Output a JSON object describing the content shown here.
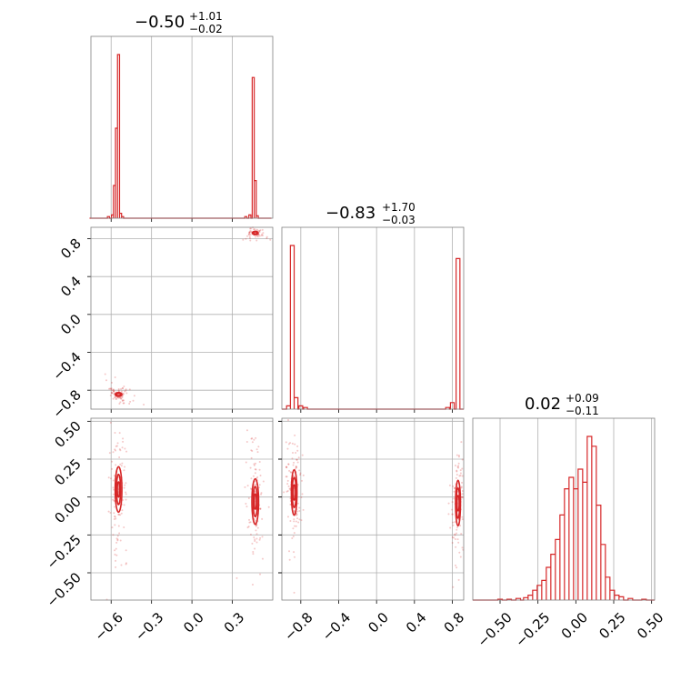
{
  "chart_data": {
    "type": "corner",
    "color": "#d62728",
    "titles": [
      {
        "median": "−0.50",
        "plus": "+1.01",
        "minus": "−0.02"
      },
      {
        "median": "−0.83",
        "plus": "+1.70",
        "minus": "−0.03"
      },
      {
        "median": "0.02",
        "plus": "+0.09",
        "minus": "−0.11"
      }
    ],
    "param_ranges": [
      [
        -0.75,
        0.6
      ],
      [
        -1.0,
        0.92
      ],
      [
        -0.68,
        0.52
      ]
    ],
    "ticks": {
      "p0": {
        "values": [
          -0.6,
          -0.3,
          0.0,
          0.3
        ],
        "labels": [
          "−0.6",
          "−0.3",
          "0.0",
          "0.3"
        ]
      },
      "p1": {
        "values": [
          -0.8,
          -0.4,
          0.0,
          0.4,
          0.8
        ],
        "labels": [
          "−0.8",
          "−0.4",
          "0.0",
          "0.4",
          "0.8"
        ]
      },
      "p2": {
        "values": [
          -0.5,
          -0.25,
          0.0,
          0.25,
          0.5
        ],
        "labels": [
          "−0.50",
          "−0.25",
          "0.00",
          "0.25",
          "0.50"
        ]
      }
    },
    "histograms": [
      {
        "param": 0,
        "bin_edges": [
          -0.76,
          0.59
        ],
        "bins": [
          {
            "x": -0.62,
            "h": 0.01
          },
          {
            "x": -0.59,
            "h": 0.02
          },
          {
            "x": -0.575,
            "h": 0.2
          },
          {
            "x": -0.56,
            "h": 0.55
          },
          {
            "x": -0.545,
            "h": 1.0
          },
          {
            "x": -0.53,
            "h": 0.03
          },
          {
            "x": -0.515,
            "h": 0.01
          },
          {
            "x": 0.4,
            "h": 0.01
          },
          {
            "x": 0.43,
            "h": 0.02
          },
          {
            "x": 0.455,
            "h": 0.86
          },
          {
            "x": 0.47,
            "h": 0.23
          },
          {
            "x": 0.485,
            "h": 0.015
          }
        ]
      },
      {
        "param": 1,
        "bin_edges": [
          -1.0,
          0.92
        ],
        "bins": [
          {
            "x": -0.93,
            "h": 0.02
          },
          {
            "x": -0.89,
            "h": 1.0
          },
          {
            "x": -0.85,
            "h": 0.07
          },
          {
            "x": -0.8,
            "h": 0.02
          },
          {
            "x": -0.75,
            "h": 0.01
          },
          {
            "x": 0.75,
            "h": 0.01
          },
          {
            "x": 0.8,
            "h": 0.04
          },
          {
            "x": 0.86,
            "h": 0.92
          }
        ]
      },
      {
        "param": 2,
        "bin_edges": [
          -0.68,
          0.52
        ],
        "bins": [
          {
            "x": -0.5,
            "h": 0.005
          },
          {
            "x": -0.44,
            "h": 0.005
          },
          {
            "x": -0.38,
            "h": 0.01
          },
          {
            "x": -0.33,
            "h": 0.015
          },
          {
            "x": -0.3,
            "h": 0.03
          },
          {
            "x": -0.27,
            "h": 0.06
          },
          {
            "x": -0.24,
            "h": 0.09
          },
          {
            "x": -0.21,
            "h": 0.12
          },
          {
            "x": -0.18,
            "h": 0.2
          },
          {
            "x": -0.15,
            "h": 0.28
          },
          {
            "x": -0.12,
            "h": 0.37
          },
          {
            "x": -0.09,
            "h": 0.52
          },
          {
            "x": -0.06,
            "h": 0.68
          },
          {
            "x": -0.03,
            "h": 0.75
          },
          {
            "x": 0.0,
            "h": 0.68
          },
          {
            "x": 0.03,
            "h": 0.8
          },
          {
            "x": 0.06,
            "h": 0.72
          },
          {
            "x": 0.09,
            "h": 1.0
          },
          {
            "x": 0.12,
            "h": 0.94
          },
          {
            "x": 0.15,
            "h": 0.58
          },
          {
            "x": 0.18,
            "h": 0.34
          },
          {
            "x": 0.21,
            "h": 0.14
          },
          {
            "x": 0.24,
            "h": 0.06
          },
          {
            "x": 0.27,
            "h": 0.03
          },
          {
            "x": 0.3,
            "h": 0.02
          },
          {
            "x": 0.36,
            "h": 0.01
          },
          {
            "x": 0.45,
            "h": 0.005
          }
        ]
      }
    ],
    "scatter_2d": [
      {
        "x_param": 0,
        "y_param": 1,
        "clusters": [
          {
            "cx": -0.545,
            "cy": -0.84,
            "rx": 0.03,
            "ry": 0.03,
            "n": 80,
            "tilt": -0.7
          },
          {
            "cx": 0.47,
            "cy": 0.86,
            "rx": 0.03,
            "ry": 0.03,
            "n": 60,
            "tilt": 0.0
          }
        ]
      },
      {
        "x_param": 0,
        "y_param": 2,
        "clusters": [
          {
            "cx": -0.545,
            "cy": 0.05,
            "rx": 0.02,
            "ry": 0.13,
            "n": 120,
            "tilt": 0.0
          },
          {
            "cx": 0.47,
            "cy": -0.03,
            "rx": 0.02,
            "ry": 0.13,
            "n": 110,
            "tilt": 0.0
          }
        ]
      },
      {
        "x_param": 1,
        "y_param": 2,
        "clusters": [
          {
            "cx": -0.87,
            "cy": 0.03,
            "rx": 0.03,
            "ry": 0.13,
            "n": 120,
            "tilt": 0.0
          },
          {
            "cx": 0.86,
            "cy": -0.05,
            "rx": 0.025,
            "ry": 0.13,
            "n": 110,
            "tilt": 0.0
          }
        ]
      }
    ],
    "contours_2d": [
      {
        "x_param": 0,
        "y_param": 1,
        "cx": -0.545,
        "cy": -0.845,
        "rx": [
          0.015,
          0.025
        ],
        "ry": [
          0.012,
          0.02
        ]
      },
      {
        "x_param": 0,
        "y_param": 1,
        "cx": 0.47,
        "cy": 0.86,
        "rx": [
          0.012,
          0.022
        ],
        "ry": [
          0.012,
          0.018
        ]
      },
      {
        "x_param": 0,
        "y_param": 2,
        "cx": -0.545,
        "cy": 0.05,
        "rx": [
          0.008,
          0.015,
          0.025
        ],
        "ry": [
          0.05,
          0.1,
          0.15
        ]
      },
      {
        "x_param": 0,
        "y_param": 2,
        "cx": 0.47,
        "cy": -0.03,
        "rx": [
          0.008,
          0.015,
          0.025
        ],
        "ry": [
          0.05,
          0.1,
          0.15
        ]
      },
      {
        "x_param": 1,
        "y_param": 2,
        "cx": -0.87,
        "cy": 0.03,
        "rx": [
          0.01,
          0.02,
          0.03
        ],
        "ry": [
          0.05,
          0.1,
          0.15
        ]
      },
      {
        "x_param": 1,
        "y_param": 2,
        "cx": 0.86,
        "cy": -0.04,
        "rx": [
          0.01,
          0.018,
          0.026
        ],
        "ry": [
          0.05,
          0.1,
          0.15
        ]
      }
    ]
  }
}
